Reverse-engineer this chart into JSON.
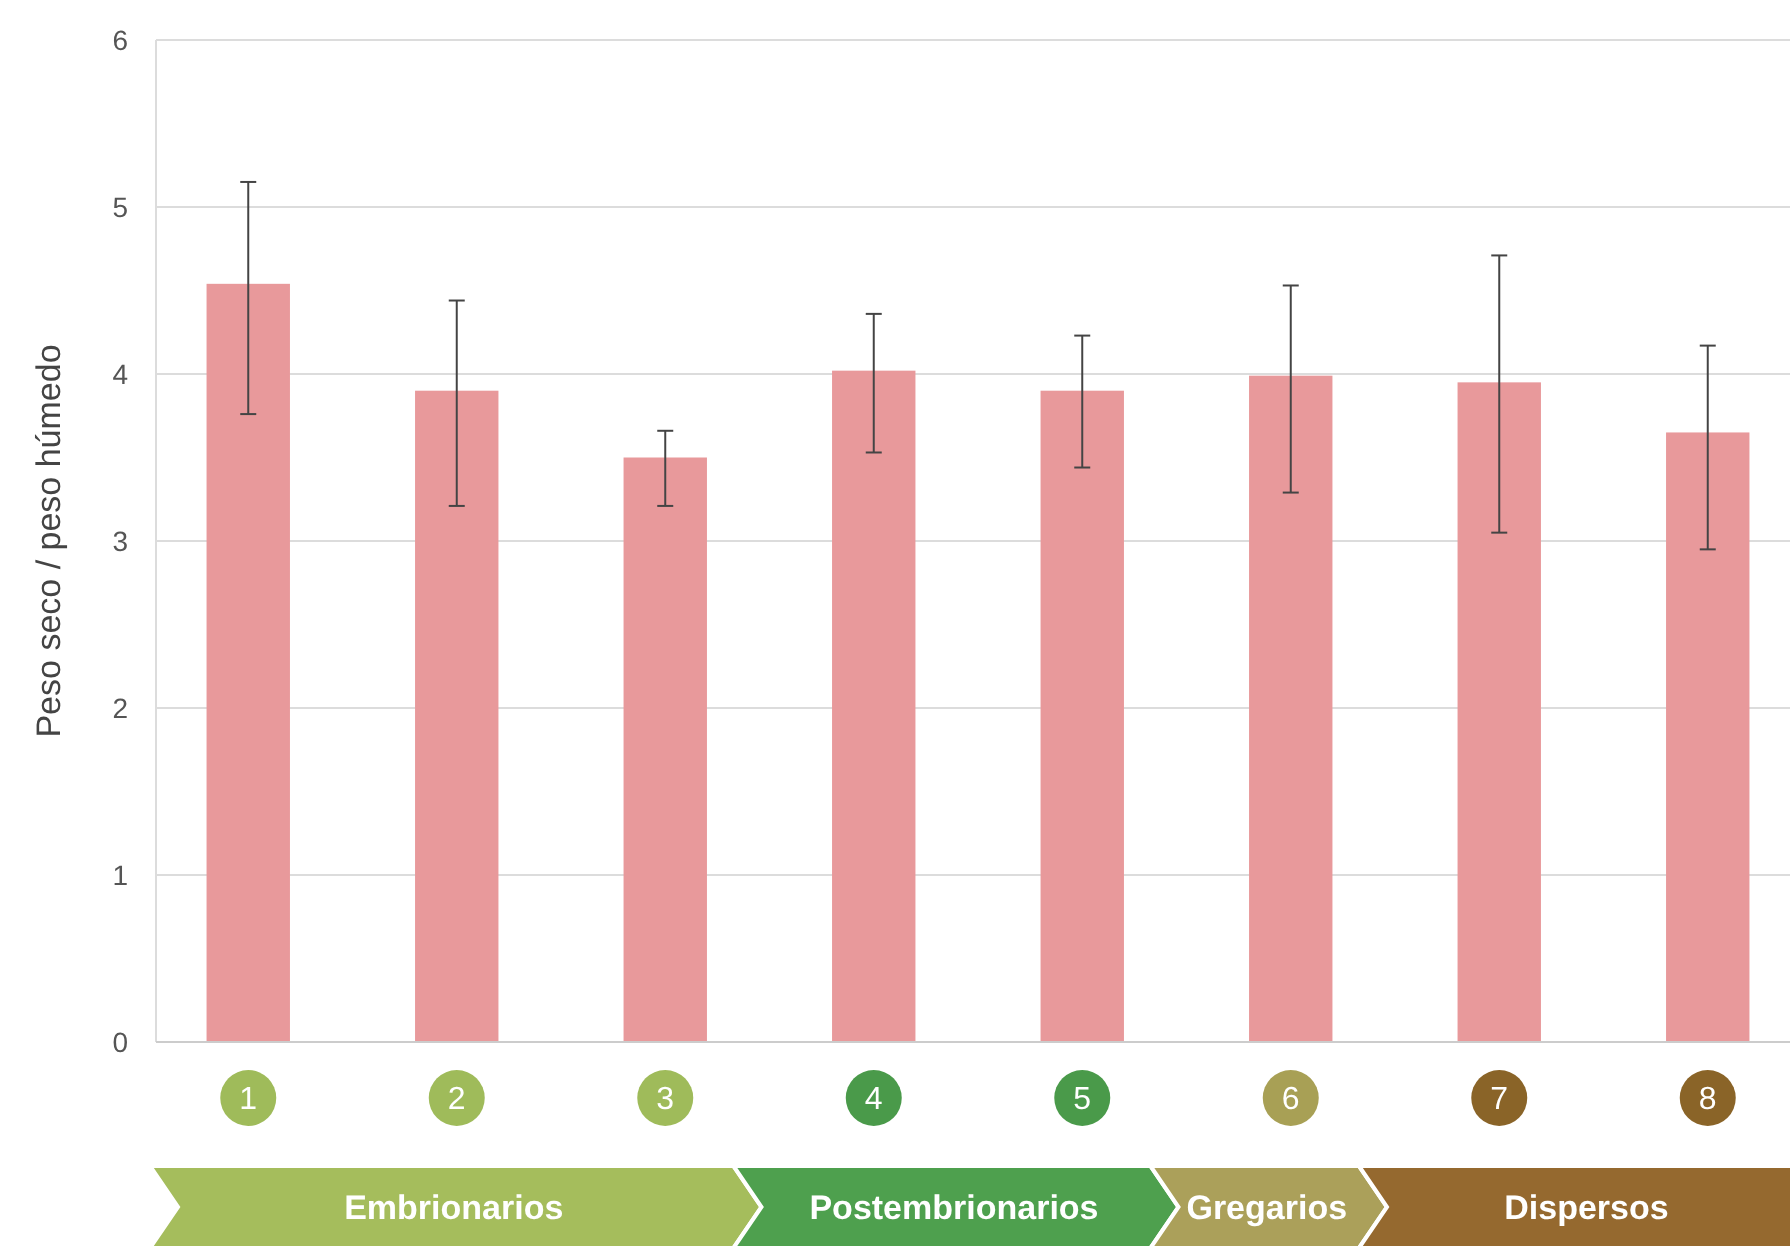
{
  "chart_data": {
    "type": "bar",
    "ylabel": "Peso seco / peso húmedo",
    "categories": [
      "1",
      "2",
      "3",
      "4",
      "5",
      "6",
      "7",
      "8"
    ],
    "values": [
      4.54,
      3.9,
      3.5,
      4.02,
      3.9,
      3.99,
      3.95,
      3.65
    ],
    "errors": [
      [
        3.76,
        5.15
      ],
      [
        3.21,
        4.44
      ],
      [
        3.21,
        3.66
      ],
      [
        3.53,
        4.36
      ],
      [
        3.44,
        4.23
      ],
      [
        3.29,
        4.53
      ],
      [
        3.05,
        4.71
      ],
      [
        2.95,
        4.17
      ]
    ],
    "color": "#e8999b",
    "ylim": [
      0,
      6
    ],
    "yticks": [
      0,
      1,
      2,
      3,
      4,
      5,
      6
    ],
    "grid": "y",
    "annotations": [
      "Embrionarios",
      "Postembrionarios",
      "Gregarios",
      "Dispersos"
    ]
  }
}
